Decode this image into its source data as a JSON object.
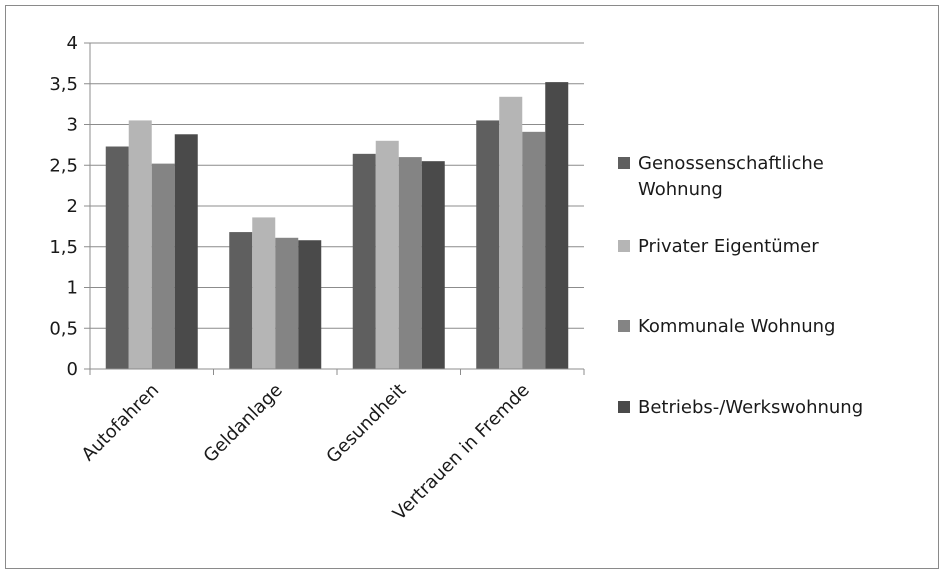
{
  "chart_data": {
    "type": "bar",
    "categories": [
      "Autofahren",
      "Geldanlage",
      "Gesundheit",
      "Vertrauen in Fremde"
    ],
    "series": [
      {
        "name": "Genossenschaftliche Wohnung",
        "color": "#5f5f5f",
        "values": [
          2.73,
          1.68,
          2.64,
          3.05
        ]
      },
      {
        "name": "Privater Eigentümer",
        "color": "#b5b5b5",
        "values": [
          3.05,
          1.86,
          2.8,
          3.34
        ]
      },
      {
        "name": "Kommunale Wohnung",
        "color": "#848484",
        "values": [
          2.52,
          1.61,
          2.6,
          2.91
        ]
      },
      {
        "name": "Betriebs-/Werkswohnung",
        "color": "#4a4a4a",
        "values": [
          2.88,
          1.58,
          2.55,
          3.52
        ]
      }
    ],
    "y_ticks": [
      "0",
      "0,5",
      "1",
      "1,5",
      "2",
      "2,5",
      "3",
      "3,5",
      "4"
    ],
    "ylim": [
      0,
      4
    ],
    "grid": true,
    "legend_position": "right",
    "title": "",
    "xlabel": "",
    "ylabel": ""
  }
}
